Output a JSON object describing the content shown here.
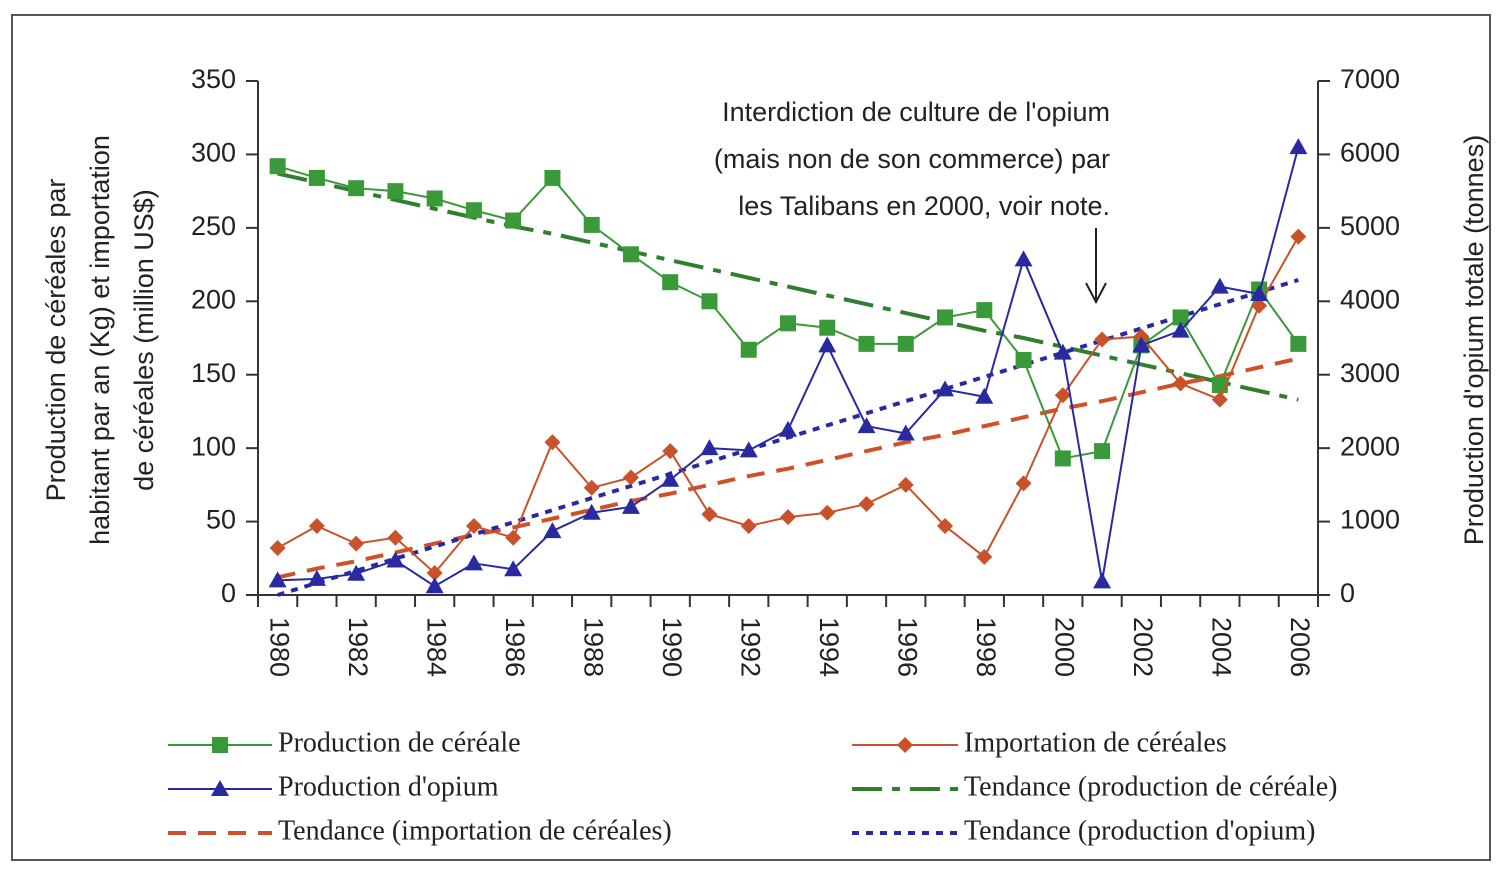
{
  "chart_data": {
    "type": "line",
    "categories": [
      "1980",
      null,
      "1982",
      null,
      "1984",
      null,
      "1986",
      null,
      "1988",
      null,
      "1990",
      null,
      "1992",
      null,
      "1994",
      null,
      "1996",
      null,
      "1998",
      null,
      "2000",
      null,
      "2002",
      null,
      "2004",
      null,
      "2006"
    ],
    "ylabel": [
      "Production de céréales par",
      "habitant par an (Kg) et importation",
      "de céréales (million US$)"
    ],
    "y2label": "Production d'opium totale (tonnes)",
    "ylim": [
      0,
      350
    ],
    "yticks": [
      0,
      50,
      100,
      150,
      200,
      250,
      300,
      350
    ],
    "y2lim": [
      0,
      7000
    ],
    "y2ticks": [
      0,
      1000,
      2000,
      3000,
      4000,
      5000,
      6000,
      7000
    ],
    "annotation": [
      "Interdiction de culture de l'opium",
      "(mais non de son commerce) par",
      "les Talibans en 2000, voir note."
    ],
    "series": [
      {
        "name": "Production de céréale",
        "color": "#3a9a3a",
        "marker": "square",
        "dash": "solid",
        "axis": "y",
        "values": [
          292,
          284,
          277,
          275,
          270,
          262,
          255,
          284,
          252,
          232,
          213,
          200,
          167,
          185,
          182,
          171,
          171,
          189,
          194,
          160,
          93,
          98,
          170,
          189,
          143,
          208,
          171
        ]
      },
      {
        "name": "Importation de céréales",
        "color": "#c8522a",
        "marker": "diamond",
        "dash": "solid",
        "axis": "y",
        "values": [
          32,
          47,
          35,
          39,
          15,
          47,
          39,
          104,
          73,
          80,
          98,
          55,
          47,
          53,
          56,
          62,
          75,
          47,
          26,
          76,
          136,
          174,
          176,
          144,
          133,
          197,
          244
        ]
      },
      {
        "name": "Production d'opium",
        "color": "#2a2aa0",
        "marker": "triangle",
        "dash": "solid",
        "axis": "y2",
        "values": [
          200,
          220,
          290,
          470,
          120,
          430,
          350,
          870,
          1120,
          1200,
          1570,
          2000,
          1970,
          2250,
          3400,
          2300,
          2200,
          2800,
          2700,
          4570,
          3300,
          185,
          3400,
          3600,
          4200,
          4100,
          6100
        ]
      },
      {
        "name": "Tendance (production de céréale)",
        "color": "#2f7f2f",
        "marker": null,
        "dash": "dash-dot",
        "axis": "y",
        "values": [
          287,
          281,
          275,
          269,
          263,
          257,
          251,
          246,
          240,
          234,
          228,
          222,
          216,
          210,
          204,
          198,
          192,
          186,
          180,
          175,
          169,
          163,
          157,
          151,
          145,
          139,
          133
        ]
      },
      {
        "name": "Tendance (importation de céréales)",
        "color": "#d0502a",
        "marker": null,
        "dash": "dash",
        "axis": "y",
        "values": [
          12,
          18,
          23,
          29,
          35,
          41,
          46,
          52,
          58,
          64,
          69,
          75,
          81,
          86,
          92,
          98,
          104,
          109,
          115,
          121,
          127,
          132,
          138,
          144,
          149,
          155,
          161
        ]
      },
      {
        "name": "Tendance (production d'opium)",
        "color": "#2a2aa0",
        "marker": null,
        "dash": "dot",
        "axis": "y2",
        "values": [
          0,
          165,
          330,
          495,
          660,
          825,
          990,
          1155,
          1320,
          1485,
          1650,
          1815,
          1980,
          2145,
          2310,
          2475,
          2640,
          2805,
          2970,
          3135,
          3300,
          3465,
          3630,
          3795,
          3960,
          4125,
          4290
        ]
      }
    ]
  }
}
